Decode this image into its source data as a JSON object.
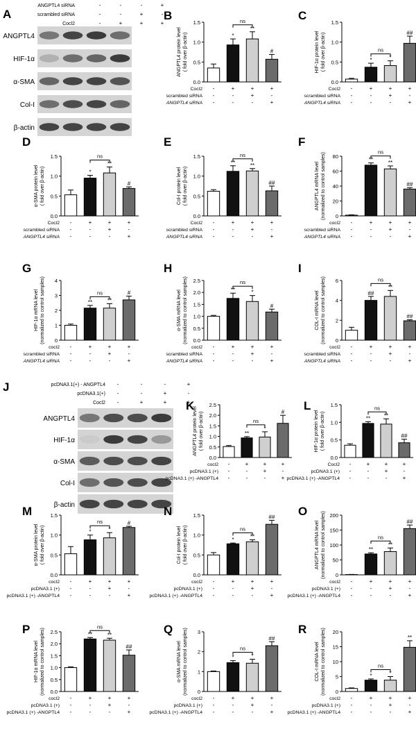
{
  "palette": {
    "control": "#ffffff",
    "cocl2": "#111111",
    "scrambled": "#cfcfcf",
    "knock": "#6b6b6b",
    "axis": "#000000",
    "blot_bg": "#d4d4d4",
    "band": "#2a2a2a"
  },
  "chart_data": [
    {
      "panel": "A",
      "type": "western_blot",
      "condition_rows": [
        {
          "label": "ANGPTL4 siRNA",
          "signs": [
            "-",
            "-",
            "-",
            "+"
          ]
        },
        {
          "label": "scrambled siRNA",
          "signs": [
            "-",
            "-",
            "+",
            "-"
          ]
        },
        {
          "label": "Cocl2",
          "signs": [
            "-",
            "+",
            "+",
            "+"
          ]
        }
      ],
      "bands": [
        {
          "label": "ANGPTL4",
          "intensity": [
            0.55,
            0.85,
            0.9,
            0.6
          ]
        },
        {
          "label": "HIF-1α",
          "intensity": [
            0.2,
            0.6,
            0.65,
            0.9
          ]
        },
        {
          "label": "α-SMA",
          "intensity": [
            0.65,
            0.85,
            0.85,
            0.75
          ]
        },
        {
          "label": "Col-I",
          "intensity": [
            0.6,
            0.8,
            0.85,
            0.65
          ]
        },
        {
          "label": "β-actin",
          "intensity": [
            0.85,
            0.85,
            0.85,
            0.85
          ]
        }
      ]
    },
    {
      "panel": "B",
      "type": "bar",
      "ylabel": "ANGPTL4 protein level ( fold over β-actin)",
      "ylim": [
        0,
        1.5
      ],
      "ticks": [
        "0.0",
        "0.5",
        "1.0",
        "1.5"
      ],
      "values": [
        0.35,
        0.93,
        1.08,
        0.57
      ],
      "errors": [
        0.1,
        0.15,
        0.18,
        0.12
      ],
      "marks": [
        "",
        "*",
        "**",
        "#"
      ],
      "ns": "ns",
      "xrows": [
        {
          "label": "Cocl2",
          "signs": [
            "-",
            "+",
            "+",
            "+"
          ]
        },
        {
          "label": "scrambled siRNA",
          "signs": [
            "-",
            "-",
            "+",
            "-"
          ]
        },
        {
          "label": "ANGPTL4 siRNA",
          "signs": [
            "-",
            "-",
            "-",
            "+"
          ]
        }
      ]
    },
    {
      "panel": "C",
      "type": "bar",
      "ylabel": "HIF-1α protein level ( fold over β-actin)",
      "ylim": [
        0,
        1.5
      ],
      "ticks": [
        "0.0",
        "0.5",
        "1.0",
        "1.5"
      ],
      "values": [
        0.07,
        0.37,
        0.41,
        0.97
      ],
      "errors": [
        0.02,
        0.1,
        0.12,
        0.18
      ],
      "marks": [
        "",
        "*",
        "*",
        "##"
      ],
      "ns": "ns",
      "xrows": [
        {
          "label": "Cocl2",
          "signs": [
            "-",
            "+",
            "+",
            "+"
          ]
        },
        {
          "label": "scrambled siRNA",
          "signs": [
            "-",
            "-",
            "+",
            "-"
          ]
        },
        {
          "label": "ANGPTL4 siRNA",
          "signs": [
            "-",
            "-",
            "-",
            "+"
          ]
        }
      ]
    },
    {
      "panel": "D",
      "type": "bar",
      "ylabel": "α-SMA protein level ( fold over β-actin)",
      "ylim": [
        0,
        1.5
      ],
      "ticks": [
        "0.0",
        "0.5",
        "1.0",
        "1.5"
      ],
      "values": [
        0.53,
        0.95,
        1.08,
        0.69
      ],
      "errors": [
        0.12,
        0.07,
        0.15,
        0.04
      ],
      "marks": [
        "",
        "*",
        "**",
        "#"
      ],
      "ns": "ns",
      "xrows": [
        {
          "label": "Cocl2",
          "signs": [
            "-",
            "+",
            "+",
            "+"
          ]
        },
        {
          "label": "scrambled siRNA",
          "signs": [
            "-",
            "-",
            "+",
            "-"
          ]
        },
        {
          "label": "ANGPTL4 siRNA",
          "signs": [
            "-",
            "-",
            "-",
            "+"
          ]
        }
      ]
    },
    {
      "panel": "E",
      "type": "bar",
      "ylabel": "Col-I protein level ( fold over β-actin)",
      "ylim": [
        0,
        1.5
      ],
      "ticks": [
        "0.0",
        "0.5",
        "1.0",
        "1.5"
      ],
      "values": [
        0.62,
        1.12,
        1.13,
        0.63
      ],
      "errors": [
        0.04,
        0.14,
        0.06,
        0.12
      ],
      "marks": [
        "",
        "**",
        "**",
        "##"
      ],
      "ns": "ns",
      "xrows": [
        {
          "label": "Cocl2",
          "signs": [
            "-",
            "+",
            "+",
            "+"
          ]
        },
        {
          "label": "scrambled siRNA",
          "signs": [
            "-",
            "-",
            "+",
            "-"
          ]
        },
        {
          "label": "ANGPTL4 siRNA",
          "signs": [
            "-",
            "-",
            "-",
            "+"
          ]
        }
      ]
    },
    {
      "panel": "F",
      "type": "bar",
      "ylabel": "ANGPTL4 mRNA level (normalized to control samples)",
      "ylim": [
        0,
        80
      ],
      "ticks": [
        "0",
        "20",
        "40",
        "60",
        "80"
      ],
      "values": [
        1,
        68,
        63,
        36
      ],
      "errors": [
        0.5,
        3,
        4,
        2
      ],
      "marks": [
        "",
        "**",
        "**",
        "##"
      ],
      "ns": "ns",
      "xrows": [
        {
          "label": "cocl2",
          "signs": [
            "-",
            "+",
            "+",
            "+"
          ]
        },
        {
          "label": "scrambled siRNA",
          "signs": [
            "-",
            "-",
            "+",
            "-"
          ]
        },
        {
          "label": "ANGPTL4 siRNA",
          "signs": [
            "-",
            "-",
            "-",
            "+"
          ]
        }
      ]
    },
    {
      "panel": "G",
      "type": "bar",
      "ylabel": "HIF-1α mRNA level (normalized to control samples)",
      "ylim": [
        0,
        4
      ],
      "ticks": [
        "0",
        "1",
        "2",
        "3",
        "4"
      ],
      "values": [
        1.0,
        2.15,
        2.15,
        2.7
      ],
      "errors": [
        0.08,
        0.18,
        0.3,
        0.25
      ],
      "marks": [
        "",
        "**",
        "**",
        "#"
      ],
      "ns": "ns",
      "xrows": [
        {
          "label": "cocl2",
          "signs": [
            "-",
            "+",
            "+",
            "+"
          ]
        },
        {
          "label": "scrambled siRNA",
          "signs": [
            "-",
            "-",
            "+",
            "-"
          ]
        },
        {
          "label": "ANGPTL4 siRNA",
          "signs": [
            "-",
            "-",
            "-",
            "+"
          ]
        }
      ]
    },
    {
      "panel": "H",
      "type": "bar",
      "ylabel": "α-SMA mRNA level (normalized to control samples)",
      "ylim": [
        0,
        2.5
      ],
      "ticks": [
        "0.0",
        "0.5",
        "1.0",
        "1.5",
        "2.0",
        "2.5"
      ],
      "values": [
        1.0,
        1.75,
        1.62,
        1.18
      ],
      "errors": [
        0.04,
        0.22,
        0.25,
        0.12
      ],
      "marks": [
        "",
        "**",
        "*",
        "#"
      ],
      "ns": "ns",
      "xrows": [
        {
          "label": "cocl2",
          "signs": [
            "-",
            "+",
            "+",
            "+"
          ]
        },
        {
          "label": "scrambled siRNA",
          "signs": [
            "-",
            "-",
            "+",
            "-"
          ]
        },
        {
          "label": "ANGPTL4 siRNA",
          "signs": [
            "-",
            "-",
            "-",
            "+"
          ]
        }
      ]
    },
    {
      "panel": "I",
      "type": "bar",
      "ylabel": "COL-I mRNA level (normalized to control samples)",
      "ylim": [
        0,
        6
      ],
      "ticks": [
        "0",
        "2",
        "4",
        "6"
      ],
      "values": [
        1.0,
        4.0,
        4.4,
        1.95
      ],
      "errors": [
        0.3,
        0.4,
        0.6,
        0.1
      ],
      "marks": [
        "",
        "##",
        "**",
        "##"
      ],
      "ns": "ns",
      "xrows": [
        {
          "label": "cocl2",
          "signs": [
            "-",
            "+",
            "+",
            "+"
          ]
        },
        {
          "label": "scrambled siRNA",
          "signs": [
            "-",
            "-",
            "+",
            "-"
          ]
        },
        {
          "label": "ANGPTL4 siRNA",
          "signs": [
            "-",
            "-",
            "-",
            "+"
          ]
        }
      ]
    },
    {
      "panel": "J",
      "type": "western_blot",
      "condition_rows": [
        {
          "label": "pcDNA3.1(+) - ANGPTL4",
          "signs": [
            "-",
            "-",
            "-",
            "+"
          ]
        },
        {
          "label": "pcDNA3.1(+)",
          "signs": [
            "-",
            "-",
            "+",
            "-"
          ]
        },
        {
          "label": "Cocl2",
          "signs": [
            "-",
            "+",
            "+",
            "+"
          ]
        }
      ],
      "bands": [
        {
          "label": "ANGPTL4",
          "intensity": [
            0.55,
            0.8,
            0.8,
            0.9
          ]
        },
        {
          "label": "HIF-1α",
          "intensity": [
            0.05,
            0.9,
            0.85,
            0.35
          ]
        },
        {
          "label": "α-SMA",
          "intensity": [
            0.7,
            0.8,
            0.8,
            0.85
          ]
        },
        {
          "label": "Col-I",
          "intensity": [
            0.6,
            0.75,
            0.8,
            0.85
          ]
        },
        {
          "label": "β-actin",
          "intensity": [
            0.85,
            0.85,
            0.85,
            0.85
          ]
        }
      ]
    },
    {
      "panel": "K",
      "type": "bar",
      "ylabel": "ANGPTL4 protein level ( fold over β-actin)",
      "ylim": [
        0,
        2.5
      ],
      "ticks": [
        "0.0",
        "0.5",
        "1.0",
        "1.5",
        "2.0",
        "2.5"
      ],
      "values": [
        0.52,
        0.93,
        0.97,
        1.62
      ],
      "errors": [
        0.05,
        0.06,
        0.25,
        0.38
      ],
      "marks": [
        "",
        "**",
        "*",
        "#"
      ],
      "ns": "ns",
      "xrows": [
        {
          "label": "cocl2",
          "signs": [
            "-",
            "+",
            "+",
            "+"
          ]
        },
        {
          "label": "pcDNA3.1 (+)",
          "signs": [
            "-",
            "-",
            "+",
            "-"
          ]
        },
        {
          "label": "pcDNA3.1 (+) -ANGPTL4",
          "signs": [
            "-",
            "-",
            "-",
            "+"
          ]
        }
      ]
    },
    {
      "panel": "L",
      "type": "bar",
      "ylabel": "HIF-1α protein level ( fold over β-actin)",
      "ylim": [
        0,
        1.5
      ],
      "ticks": [
        "0.0",
        "0.5",
        "1.0",
        "1.5"
      ],
      "values": [
        0.35,
        0.97,
        0.95,
        0.42
      ],
      "errors": [
        0.04,
        0.05,
        0.15,
        0.1
      ],
      "marks": [
        "",
        "**",
        "**",
        "##"
      ],
      "ns": "ns",
      "xrows": [
        {
          "label": "Cocl2",
          "signs": [
            "-",
            "+",
            "+",
            "+"
          ]
        },
        {
          "label": "pcDNA3.1 (+)",
          "signs": [
            "-",
            "-",
            "+",
            "-"
          ]
        },
        {
          "label": "pcDNA3.1 (+) -ANGPTL4",
          "signs": [
            "-",
            "-",
            "-",
            "+"
          ]
        }
      ]
    },
    {
      "panel": "M",
      "type": "bar",
      "ylabel": "α-SMA protein level ( fold over β-actin)",
      "ylim": [
        0,
        1.5
      ],
      "ticks": [
        "0.0",
        "0.5",
        "1.0",
        "1.5"
      ],
      "values": [
        0.53,
        0.88,
        0.93,
        1.19
      ],
      "errors": [
        0.18,
        0.12,
        0.13,
        0.03
      ],
      "marks": [
        "",
        "*",
        "*",
        "#"
      ],
      "ns": "ns",
      "xrows": [
        {
          "label": "cocl2",
          "signs": [
            "-",
            "+",
            "+",
            "+"
          ]
        },
        {
          "label": "pcDNA3.1 (+)",
          "signs": [
            "-",
            "-",
            "+",
            "-"
          ]
        },
        {
          "label": "pcDNA3.1 (+) -ANGPTL4",
          "signs": [
            "-",
            "-",
            "-",
            "+"
          ]
        }
      ]
    },
    {
      "panel": "N",
      "type": "bar",
      "ylabel": "Col-I protein level ( fold over β-actin)",
      "ylim": [
        0,
        1.5
      ],
      "ticks": [
        "0.0",
        "0.5",
        "1.0",
        "1.5"
      ],
      "values": [
        0.5,
        0.78,
        0.83,
        1.27
      ],
      "errors": [
        0.06,
        0.02,
        0.05,
        0.1
      ],
      "marks": [
        "",
        "*",
        "**",
        "##"
      ],
      "ns": "ns",
      "xrows": [
        {
          "label": "cocl2",
          "signs": [
            "-",
            "+",
            "+",
            "+"
          ]
        },
        {
          "label": "pcDNA3.1 (+)",
          "signs": [
            "-",
            "-",
            "+",
            "-"
          ]
        },
        {
          "label": "pcDNA3.1 (+) -ANGPTL4",
          "signs": [
            "-",
            "-",
            "-",
            "+"
          ]
        }
      ]
    },
    {
      "panel": "O",
      "type": "bar",
      "ylabel": "ANGPTL4 mRNA level (normalized to control samples)",
      "ylim": [
        0,
        200
      ],
      "ticks": [
        "0",
        "50",
        "100",
        "150",
        "200"
      ],
      "values": [
        1,
        70,
        78,
        155
      ],
      "errors": [
        0.5,
        4,
        12,
        12
      ],
      "marks": [
        "",
        "**",
        "**",
        "##"
      ],
      "ns": "ns",
      "xrows": [
        {
          "label": "cocl2",
          "signs": [
            "-",
            "+",
            "+",
            "+"
          ]
        },
        {
          "label": "pcDNA3.1 (+)",
          "signs": [
            "-",
            "-",
            "+",
            "-"
          ]
        },
        {
          "label": "pcDNA3.1 (+) -ANGPTL4",
          "signs": [
            "-",
            "-",
            "-",
            "+"
          ]
        }
      ]
    },
    {
      "panel": "P",
      "type": "bar",
      "ylabel": "HIF-1α mRNA level (normalized to control samples)",
      "ylim": [
        0,
        2.5
      ],
      "ticks": [
        "0.0",
        "0.5",
        "1.0",
        "1.5",
        "2.0",
        "2.5"
      ],
      "values": [
        1.0,
        2.2,
        2.15,
        1.52
      ],
      "errors": [
        0.03,
        0.06,
        0.08,
        0.22
      ],
      "marks": [
        "",
        "**",
        "**",
        "##"
      ],
      "ns": "ns",
      "xrows": [
        {
          "label": "cocl2",
          "signs": [
            "-",
            "+",
            "+",
            "+"
          ]
        },
        {
          "label": "pcDNA3.1 (+)",
          "signs": [
            "-",
            "-",
            "+",
            "-"
          ]
        },
        {
          "label": "pcDNA3.1 (+) -ANGPTL4",
          "signs": [
            "-",
            "-",
            "-",
            "+"
          ]
        }
      ]
    },
    {
      "panel": "Q",
      "type": "bar",
      "ylabel": "α-SMA mRNA level (normalized to control samples)",
      "ylim": [
        0,
        3
      ],
      "ticks": [
        "0",
        "1",
        "2",
        "3"
      ],
      "values": [
        1.0,
        1.45,
        1.42,
        2.3
      ],
      "errors": [
        0.03,
        0.1,
        0.2,
        0.2
      ],
      "marks": [
        "",
        "*",
        "*",
        "##"
      ],
      "ns": "ns",
      "xrows": [
        {
          "label": "cocl2",
          "signs": [
            "-",
            "+",
            "+",
            "+"
          ]
        },
        {
          "label": "pcDNA3.1 (+)",
          "signs": [
            "-",
            "-",
            "+",
            "-"
          ]
        },
        {
          "label": "pcDNA3.1 (+) -ANGPTL4",
          "signs": [
            "-",
            "-",
            "-",
            "+"
          ]
        }
      ]
    },
    {
      "panel": "R",
      "type": "bar",
      "ylabel": "COL-I mRNA level (normalized to control samples)",
      "ylim": [
        0,
        20
      ],
      "ticks": [
        "0",
        "5",
        "10",
        "15",
        "20"
      ],
      "values": [
        1.0,
        3.8,
        3.8,
        14.8
      ],
      "errors": [
        0.2,
        0.4,
        1.2,
        2.2
      ],
      "marks": [
        "",
        "*",
        "*",
        "**"
      ],
      "ns": "ns",
      "xrows": [
        {
          "label": "cocl2",
          "signs": [
            "-",
            "+",
            "+",
            "+"
          ]
        },
        {
          "label": "pcDNA3.1 (+)",
          "signs": [
            "-",
            "-",
            "+",
            "-"
          ]
        },
        {
          "label": "pcDNA3.1 (+) -ANGPTL4",
          "signs": [
            "-",
            "-",
            "-",
            "+"
          ]
        }
      ]
    }
  ]
}
